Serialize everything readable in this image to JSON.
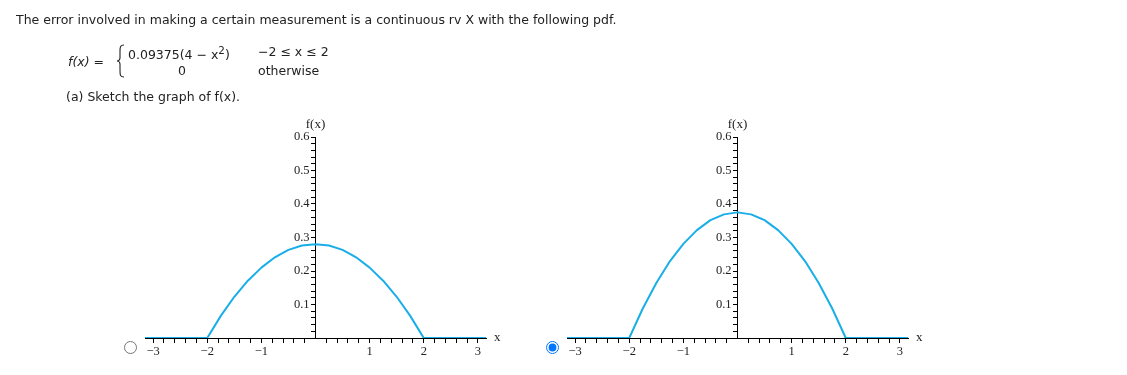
{
  "chart_data": [
    {
      "type": "other",
      "title": "The error involved in making a certain measurement is a continuous rv X with the following pdf.",
      "annotations": [
        "f(x) =",
        "0.09375(4 − x$^{2}$)",
        "−2 ≤ x ≤ 2",
        "0",
        "otherwise",
        "(a) Sketch the graph of f(x)."
      ]
    },
    {
      "type": "line",
      "xlabel": "x",
      "ylabel": "f(x)",
      "x": [
        -3.15,
        -2,
        -1.75,
        -1.5,
        -1.25,
        -1,
        -0.75,
        -0.5,
        -0.25,
        0,
        0.25,
        0.5,
        0.75,
        1,
        1.25,
        1.5,
        1.75,
        2,
        3.15
      ],
      "series": [
        {
          "color": "#1aaee8",
          "values": [
            0,
            0,
            0.066,
            0.123,
            0.171,
            0.21,
            0.241,
            0.263,
            0.276,
            0.28,
            0.276,
            0.263,
            0.241,
            0.21,
            0.171,
            0.123,
            0.066,
            0,
            0
          ]
        }
      ],
      "xlim": [
        -3.15,
        3.15
      ],
      "ylim": [
        0,
        0.6
      ],
      "xticks": [
        {
          "value": -3,
          "label": "−3"
        },
        {
          "value": -2.8,
          "label": null
        },
        {
          "value": -2.6,
          "label": null
        },
        {
          "value": -2.4,
          "label": null
        },
        {
          "value": -2.2,
          "label": null
        },
        {
          "value": -2,
          "label": "−2"
        },
        {
          "value": -1.8,
          "label": null
        },
        {
          "value": -1.6,
          "label": null
        },
        {
          "value": -1.4,
          "label": null
        },
        {
          "value": -1.2,
          "label": null
        },
        {
          "value": -1,
          "label": "−1"
        },
        {
          "value": -0.8,
          "label": null
        },
        {
          "value": -0.6,
          "label": null
        },
        {
          "value": -0.4,
          "label": null
        },
        {
          "value": -0.2,
          "label": null
        },
        {
          "value": 0.2,
          "label": null
        },
        {
          "value": 0.4,
          "label": null
        },
        {
          "value": 0.6,
          "label": null
        },
        {
          "value": 0.8,
          "label": null
        },
        1,
        {
          "value": 1.2,
          "label": null
        },
        {
          "value": 1.4,
          "label": null
        },
        {
          "value": 1.6,
          "label": null
        },
        {
          "value": 1.8,
          "label": null
        },
        2,
        {
          "value": 2.2,
          "label": null
        },
        {
          "value": 2.4,
          "label": null
        },
        {
          "value": 2.6,
          "label": null
        },
        {
          "value": 2.8,
          "label": null
        },
        3
      ],
      "yticks": [
        {
          "value": 0.02,
          "label": null
        },
        {
          "value": 0.04,
          "label": null
        },
        {
          "value": 0.06,
          "label": null
        },
        {
          "value": 0.08,
          "label": null
        },
        0.1,
        {
          "value": 0.12,
          "label": null
        },
        {
          "value": 0.14,
          "label": null
        },
        {
          "value": 0.16,
          "label": null
        },
        {
          "value": 0.18,
          "label": null
        },
        0.2,
        {
          "value": 0.22,
          "label": null
        },
        {
          "value": 0.24,
          "label": null
        },
        {
          "value": 0.26,
          "label": null
        },
        {
          "value": 0.28,
          "label": null
        },
        0.3,
        {
          "value": 0.32,
          "label": null
        },
        {
          "value": 0.34,
          "label": null
        },
        {
          "value": 0.36,
          "label": null
        },
        {
          "value": 0.38,
          "label": null
        },
        0.4,
        {
          "value": 0.42,
          "label": null
        },
        {
          "value": 0.44,
          "label": null
        },
        {
          "value": 0.46,
          "label": null
        },
        {
          "value": 0.48,
          "label": null
        },
        0.5,
        {
          "value": 0.52,
          "label": null
        },
        {
          "value": 0.54,
          "label": null
        },
        {
          "value": 0.56,
          "label": null
        },
        {
          "value": 0.58,
          "label": null
        },
        0.6
      ],
      "grid": false,
      "legend": false,
      "marker": "none",
      "line_style": "solid"
    },
    {
      "type": "line",
      "xlabel": "x",
      "ylabel": "f(x)",
      "x": [
        -3.15,
        -2,
        -1.75,
        -1.5,
        -1.25,
        -1,
        -0.75,
        -0.5,
        -0.25,
        0,
        0.25,
        0.5,
        0.75,
        1,
        1.25,
        1.5,
        1.75,
        2,
        3.15
      ],
      "series": [
        {
          "color": "#1aaee8",
          "values": [
            0,
            0,
            0.088,
            0.164,
            0.229,
            0.281,
            0.322,
            0.352,
            0.369,
            0.375,
            0.369,
            0.352,
            0.322,
            0.281,
            0.229,
            0.164,
            0.088,
            0,
            0
          ]
        }
      ],
      "xlim": [
        -3.15,
        3.15
      ],
      "ylim": [
        0,
        0.6
      ],
      "xticks": [
        {
          "value": -3,
          "label": "−3"
        },
        {
          "value": -2.8,
          "label": null
        },
        {
          "value": -2.6,
          "label": null
        },
        {
          "value": -2.4,
          "label": null
        },
        {
          "value": -2.2,
          "label": null
        },
        {
          "value": -2,
          "label": "−2"
        },
        {
          "value": -1.8,
          "label": null
        },
        {
          "value": -1.6,
          "label": null
        },
        {
          "value": -1.4,
          "label": null
        },
        {
          "value": -1.2,
          "label": null
        },
        {
          "value": -1,
          "label": "−1"
        },
        {
          "value": -0.8,
          "label": null
        },
        {
          "value": -0.6,
          "label": null
        },
        {
          "value": -0.4,
          "label": null
        },
        {
          "value": -0.2,
          "label": null
        },
        {
          "value": 0.2,
          "label": null
        },
        {
          "value": 0.4,
          "label": null
        },
        {
          "value": 0.6,
          "label": null
        },
        {
          "value": 0.8,
          "label": null
        },
        1,
        {
          "value": 1.2,
          "label": null
        },
        {
          "value": 1.4,
          "label": null
        },
        {
          "value": 1.6,
          "label": null
        },
        {
          "value": 1.8,
          "label": null
        },
        2,
        {
          "value": 2.2,
          "label": null
        },
        {
          "value": 2.4,
          "label": null
        },
        {
          "value": 2.6,
          "label": null
        },
        {
          "value": 2.8,
          "label": null
        },
        3
      ],
      "yticks": [
        {
          "value": 0.02,
          "label": null
        },
        {
          "value": 0.04,
          "label": null
        },
        {
          "value": 0.06,
          "label": null
        },
        {
          "value": 0.08,
          "label": null
        },
        0.1,
        {
          "value": 0.12,
          "label": null
        },
        {
          "value": 0.14,
          "label": null
        },
        {
          "value": 0.16,
          "label": null
        },
        {
          "value": 0.18,
          "label": null
        },
        0.2,
        {
          "value": 0.22,
          "label": null
        },
        {
          "value": 0.24,
          "label": null
        },
        {
          "value": 0.26,
          "label": null
        },
        {
          "value": 0.28,
          "label": null
        },
        0.3,
        {
          "value": 0.32,
          "label": null
        },
        {
          "value": 0.34,
          "label": null
        },
        {
          "value": 0.36,
          "label": null
        },
        {
          "value": 0.38,
          "label": null
        },
        0.4,
        {
          "value": 0.42,
          "label": null
        },
        {
          "value": 0.44,
          "label": null
        },
        {
          "value": 0.46,
          "label": null
        },
        {
          "value": 0.48,
          "label": null
        },
        0.5,
        {
          "value": 0.52,
          "label": null
        },
        {
          "value": 0.54,
          "label": null
        },
        {
          "value": 0.56,
          "label": null
        },
        {
          "value": 0.58,
          "label": null
        },
        0.6
      ],
      "grid": false,
      "legend": false,
      "marker": "none",
      "line_style": "solid"
    }
  ]
}
